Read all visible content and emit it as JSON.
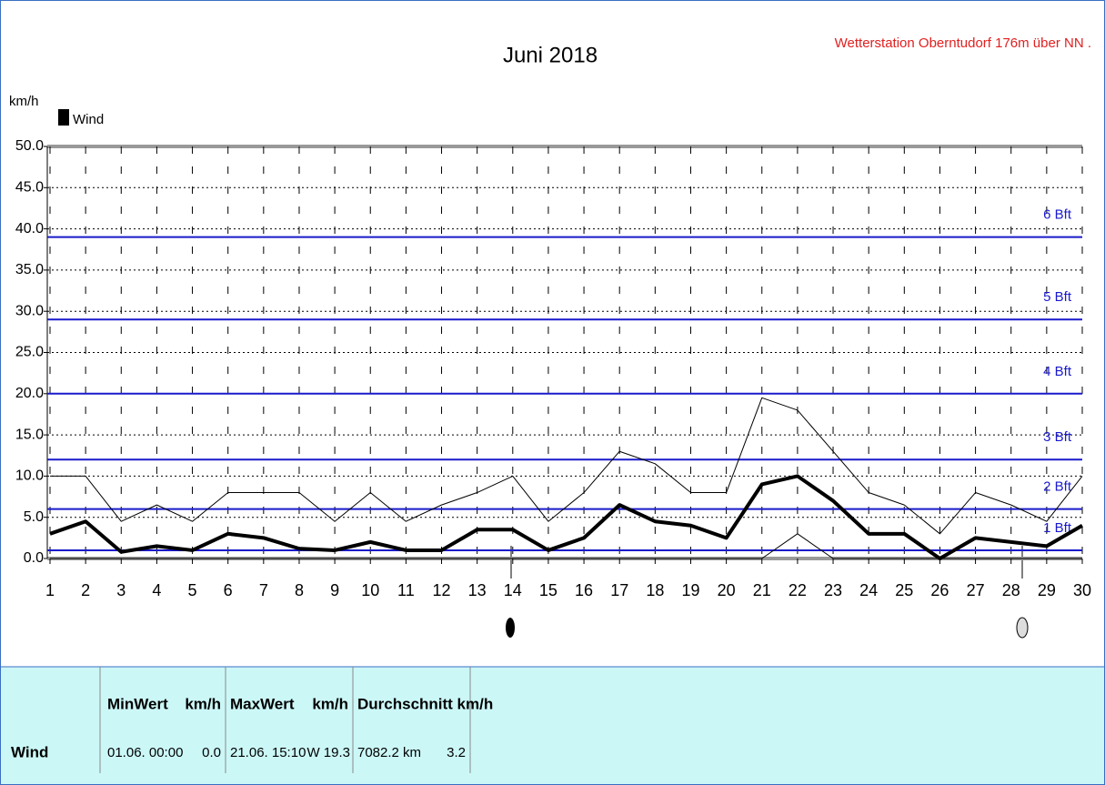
{
  "chart_data": {
    "type": "line",
    "title": "Juni 2018",
    "station": "Wetterstation Oberntudorf 176m über NN .",
    "y_label": "km/h",
    "categories": [
      "1",
      "2",
      "3",
      "4",
      "5",
      "6",
      "7",
      "8",
      "9",
      "10",
      "11",
      "12",
      "13",
      "14",
      "15",
      "16",
      "17",
      "18",
      "19",
      "20",
      "21",
      "22",
      "23",
      "24",
      "25",
      "26",
      "27",
      "28",
      "29",
      "30"
    ],
    "series": [
      {
        "name": "Wind",
        "color": "#000000",
        "width": 4,
        "values": [
          3,
          4.5,
          0.8,
          1.5,
          1,
          3,
          2.5,
          1.2,
          1,
          2,
          1,
          1,
          3.5,
          3.5,
          1,
          2.5,
          6.5,
          4.5,
          4,
          2.5,
          9,
          10,
          7,
          3,
          3,
          0,
          2.5,
          2,
          1.5,
          4
        ]
      },
      {
        "color": "#000000",
        "width": 1,
        "values": [
          10,
          10,
          4.5,
          6.5,
          4.5,
          8,
          8,
          8,
          4.5,
          8,
          4.5,
          6.5,
          8,
          10,
          4.5,
          8,
          13,
          11.5,
          8,
          8,
          19.5,
          18,
          13,
          8,
          6.5,
          3,
          8,
          6.5,
          4.5,
          10
        ]
      },
      {
        "color": "#000000",
        "width": 1,
        "values": [
          0,
          0,
          0,
          0,
          0,
          0,
          0,
          0,
          0,
          0,
          0,
          0,
          0,
          0,
          0,
          0,
          0,
          0,
          0,
          0,
          0,
          3,
          0,
          0,
          0,
          0,
          0,
          0,
          0,
          0
        ]
      }
    ],
    "reference_lines": [
      {
        "value": 39,
        "label": "6 Bft"
      },
      {
        "value": 29,
        "label": "5 Bft"
      },
      {
        "value": 20,
        "label": "4 Bft"
      },
      {
        "value": 12,
        "label": "3 Bft"
      },
      {
        "value": 6,
        "label": "2 Bft"
      },
      {
        "value": 1,
        "label": "1 Bft"
      }
    ],
    "reference_color": "#1a1acc",
    "ylim": [
      0,
      50
    ],
    "yticks": [
      {
        "value": 0,
        "label": "0.0"
      },
      {
        "value": 5,
        "label": "5.0"
      },
      {
        "value": 10,
        "label": "10.0"
      },
      {
        "value": 15,
        "label": "15.0"
      },
      {
        "value": 20,
        "label": "20.0"
      },
      {
        "value": 25,
        "label": "25.0"
      },
      {
        "value": 30,
        "label": "30.0"
      },
      {
        "value": 35,
        "label": "35.0"
      },
      {
        "value": 40,
        "label": "40.0"
      },
      {
        "value": 45,
        "label": "45.0"
      },
      {
        "value": 50,
        "label": "50.0"
      }
    ],
    "grid": true
  },
  "table": {
    "headers": [
      "MinWert",
      "km/h",
      "MaxWert",
      "km/h",
      "Durchschnitt km/h"
    ],
    "row": [
      "Wind",
      "01.06. 00:00",
      "0.0",
      "21.06. 15:10",
      "W 19.3",
      "7082.2 km",
      "3.2"
    ]
  }
}
